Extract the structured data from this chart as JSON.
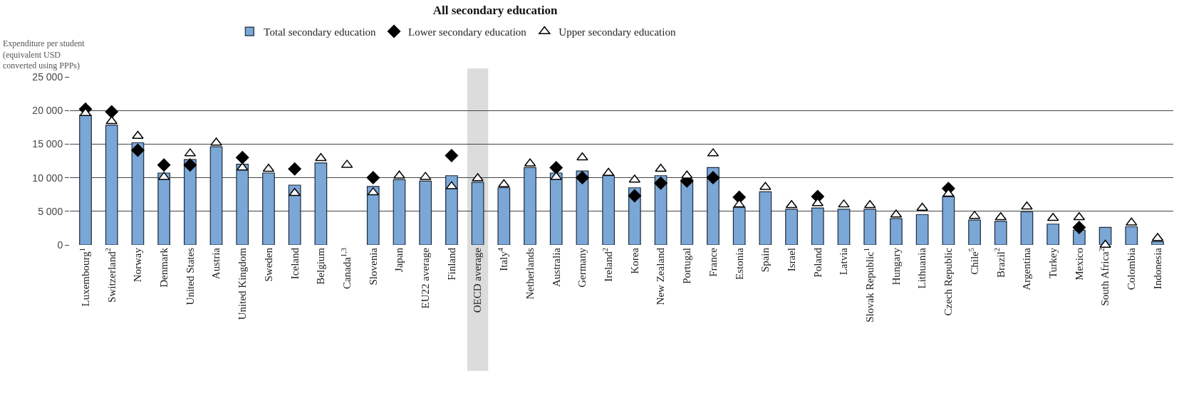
{
  "chart_data": {
    "type": "bar",
    "title": "All secondary education",
    "ylabel": "Expenditure per student (equivalent USD converted using PPPs)",
    "categories": [
      "Luxembourg$^{1}$",
      "Switzerland$^{2}$",
      "Norway",
      "Denmark",
      "United States",
      "Austria",
      "United Kingdom",
      "Sweden",
      "Iceland",
      "Belgium",
      "Canada$^{1,3}$",
      "Slovenia",
      "Japan",
      "EU22 average",
      "Finland",
      "OECD average",
      "Italy$^{4}$",
      "Netherlands",
      "Australia",
      "Germany",
      "Ireland$^{2}$",
      "Korea",
      "New Zealand",
      "Portugal",
      "France",
      "Estonia",
      "Spain",
      "Israel",
      "Poland",
      "Latvia",
      "Slovak Republic$^{1}$",
      "Hungary",
      "Lithuania",
      "Czech Republic",
      "Chile$^{5}$",
      "Brazil$^{2}$",
      "Argentina",
      "Turkey",
      "Mexico",
      "South Africa$^{2}$",
      "Colombia",
      "Indonesia"
    ],
    "series": [
      {
        "name": "Total secondary education",
        "color": "#7ba7d7",
        "values": [
          19300,
          17800,
          15200,
          10700,
          12700,
          14600,
          12000,
          10700,
          8900,
          12200,
          null,
          8700,
          9700,
          9500,
          10300,
          9300,
          8500,
          11500,
          10700,
          11000,
          10300,
          8500,
          10300,
          9700,
          11500,
          5600,
          7900,
          5300,
          5500,
          5300,
          5300,
          3900,
          4500,
          7200,
          3700,
          3500,
          4900,
          3100,
          2200,
          2600,
          2700,
          500
        ]
      },
      {
        "name": "Lower secondary education",
        "type": "scatter",
        "marker": "diamond",
        "color": "#000000",
        "values": [
          20200,
          19800,
          14100,
          11900,
          11900,
          null,
          13000,
          null,
          11300,
          null,
          null,
          10000,
          null,
          null,
          13300,
          null,
          null,
          null,
          11500,
          10000,
          null,
          7300,
          9200,
          9500,
          10000,
          7100,
          null,
          null,
          7200,
          null,
          null,
          null,
          null,
          8400,
          null,
          null,
          null,
          null,
          2600,
          null,
          null,
          null
        ]
      },
      {
        "name": "Upper secondary education",
        "type": "scatter",
        "marker": "triangle",
        "color": "#ffffff",
        "values": [
          19600,
          18400,
          16200,
          10100,
          13600,
          15200,
          11500,
          11300,
          7700,
          12900,
          11900,
          7800,
          10300,
          10100,
          8700,
          9900,
          9000,
          12100,
          10100,
          13000,
          10700,
          9700,
          11300,
          10300,
          13600,
          6000,
          8600,
          5900,
          6200,
          6000,
          5900,
          4500,
          5500,
          7600,
          4300,
          4100,
          5700,
          4000,
          4100,
          0,
          3300,
          1000
        ]
      }
    ],
    "ylim": [
      0,
      25000
    ],
    "yticks": [
      0,
      {
        "value": 5000,
        "label": "5 000"
      },
      {
        "value": 10000,
        "label": "10 000"
      },
      {
        "value": 15000,
        "label": "15 000"
      },
      {
        "value": 20000,
        "label": "20 000"
      },
      {
        "value": 25000,
        "label": "25 000"
      }
    ],
    "grid": "y",
    "legend": "top",
    "bands": [
      {
        "axis": "x",
        "from": "OECD average",
        "to": "OECD average",
        "color": "#dcdcdc"
      }
    ]
  }
}
